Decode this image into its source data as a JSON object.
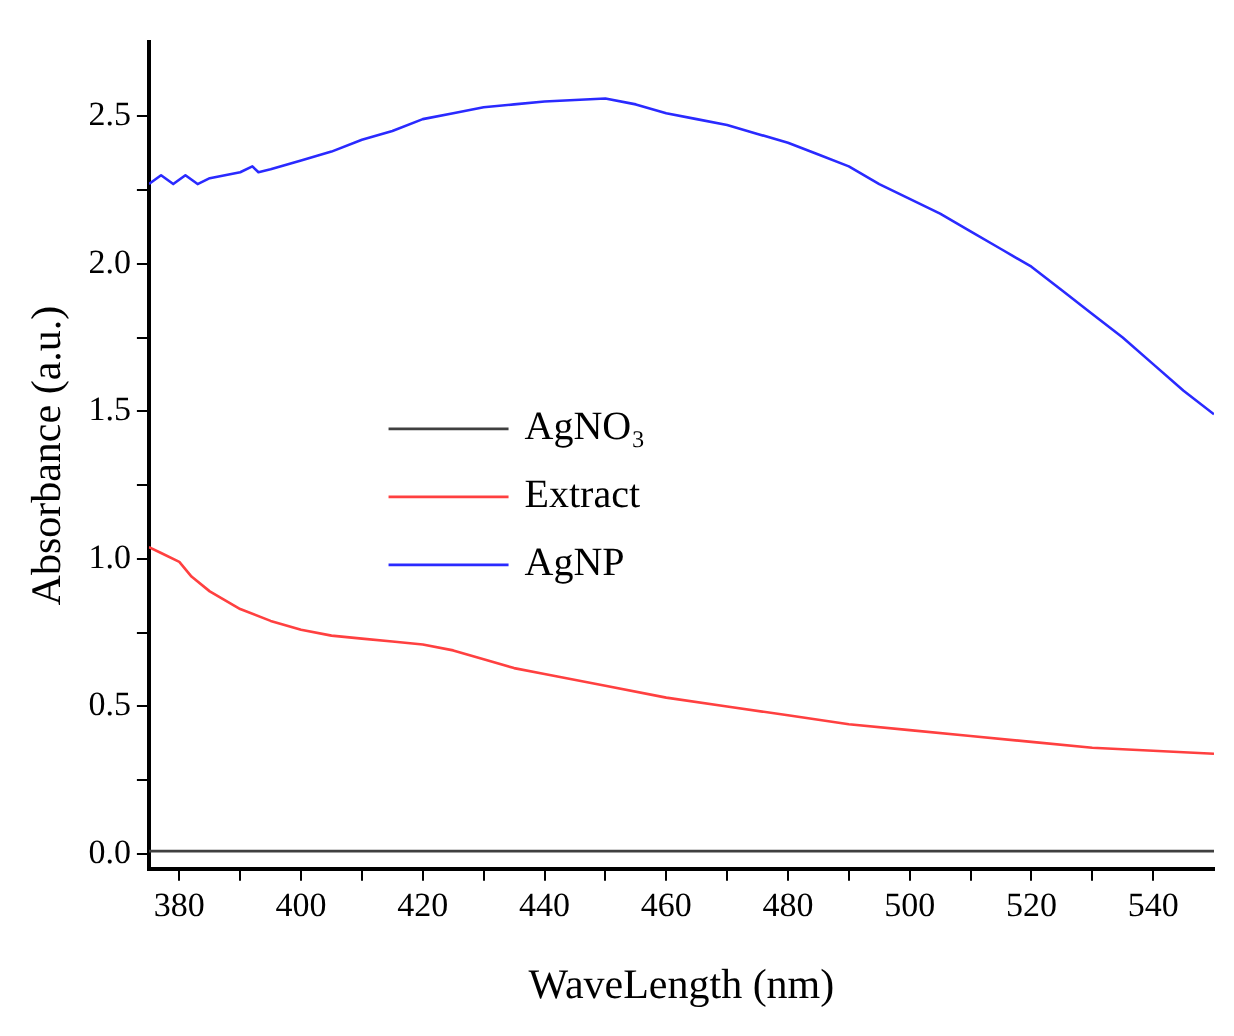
{
  "chart_data": {
    "type": "line",
    "xlabel": "WaveLength (nm)",
    "ylabel": "Absorbance (a.u.)",
    "xlim": [
      375,
      550
    ],
    "ylim": [
      -0.05,
      2.75
    ],
    "xticks": [
      {
        "value": 380,
        "label": "380"
      },
      {
        "value": 390,
        "label": null
      },
      {
        "value": 400,
        "label": "400"
      },
      {
        "value": 410,
        "label": null
      },
      {
        "value": 420,
        "label": "420"
      },
      {
        "value": 430,
        "label": null
      },
      {
        "value": 440,
        "label": "440"
      },
      {
        "value": 450,
        "label": null
      },
      {
        "value": 460,
        "label": "460"
      },
      {
        "value": 470,
        "label": null
      },
      {
        "value": 480,
        "label": "480"
      },
      {
        "value": 490,
        "label": null
      },
      {
        "value": 500,
        "label": "500"
      },
      {
        "value": 510,
        "label": null
      },
      {
        "value": 520,
        "label": "520"
      },
      {
        "value": 530,
        "label": null
      },
      {
        "value": 540,
        "label": "540"
      }
    ],
    "yticks": [
      {
        "value": 0,
        "label": "0.0"
      },
      {
        "value": 0.25,
        "label": null
      },
      {
        "value": 0.5,
        "label": "0.5"
      },
      {
        "value": 0.75,
        "label": null
      },
      {
        "value": 1,
        "label": "1.0"
      },
      {
        "value": 1.25,
        "label": null
      },
      {
        "value": 1.5,
        "label": "1.5"
      },
      {
        "value": 1.75,
        "label": null
      },
      {
        "value": 2,
        "label": "2.0"
      },
      {
        "value": 2.25,
        "label": null
      },
      {
        "value": 2.5,
        "label": "2.5"
      }
    ],
    "grid": false,
    "legend": "center",
    "marker": "none",
    "line_style": "solid",
    "series": [
      {
        "name": "AgNO₃",
        "color": "#404040",
        "x": [
          375,
          450,
          550
        ],
        "values": [
          0.01,
          0.01,
          0.01
        ]
      },
      {
        "name": "Extract",
        "color": "#ff4040",
        "x": [
          375,
          377,
          380,
          382,
          385,
          390,
          395,
          400,
          405,
          410,
          415,
          420,
          425,
          430,
          435,
          440,
          450,
          460,
          470,
          480,
          490,
          500,
          510,
          520,
          530,
          540,
          550
        ],
        "values": [
          1.04,
          1.02,
          0.99,
          0.94,
          0.89,
          0.83,
          0.79,
          0.76,
          0.74,
          0.73,
          0.72,
          0.71,
          0.69,
          0.66,
          0.63,
          0.61,
          0.57,
          0.53,
          0.5,
          0.47,
          0.44,
          0.42,
          0.4,
          0.38,
          0.36,
          0.35,
          0.34
        ]
      },
      {
        "name": "AgNP",
        "color": "#2a2aff",
        "x": [
          375,
          377,
          379,
          381,
          383,
          385,
          390,
          392,
          393,
          395,
          400,
          405,
          410,
          415,
          420,
          425,
          430,
          435,
          440,
          445,
          450,
          455,
          460,
          465,
          470,
          475,
          480,
          485,
          490,
          495,
          500,
          505,
          510,
          515,
          520,
          525,
          530,
          535,
          540,
          545,
          550
        ],
        "values": [
          2.27,
          2.3,
          2.27,
          2.3,
          2.27,
          2.29,
          2.31,
          2.33,
          2.31,
          2.32,
          2.35,
          2.38,
          2.42,
          2.45,
          2.49,
          2.51,
          2.53,
          2.54,
          2.55,
          2.555,
          2.56,
          2.54,
          2.51,
          2.49,
          2.47,
          2.44,
          2.41,
          2.37,
          2.33,
          2.27,
          2.22,
          2.17,
          2.11,
          2.05,
          1.99,
          1.91,
          1.83,
          1.75,
          1.66,
          1.57,
          1.49
        ]
      }
    ]
  }
}
